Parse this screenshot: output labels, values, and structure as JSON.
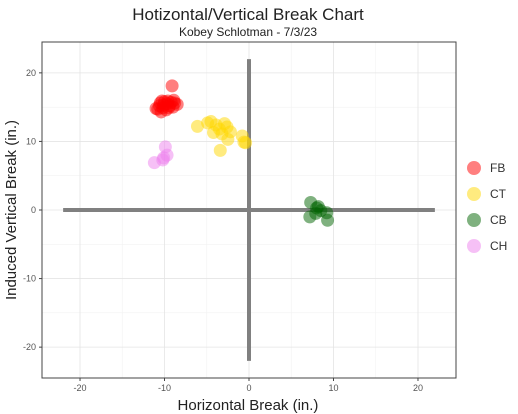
{
  "chart_data": {
    "type": "scatter",
    "title": "Hotizontal/Vertical Break Chart",
    "subtitle": "Kobey Schlotman - 7/3/23",
    "xlabel": "Horizontal Break (in.)",
    "ylabel": "Induced Vertical Break (in.)",
    "xlim": [
      -24.5,
      24.5
    ],
    "ylim": [
      -24.5,
      24.5
    ],
    "x_ticks": [
      -20,
      -10,
      0,
      10,
      20
    ],
    "y_ticks": [
      -20,
      -10,
      0,
      10,
      20
    ],
    "grid": true,
    "legend_position": "right",
    "reference_lines": [
      {
        "orientation": "horizontal",
        "y": 0,
        "from": -22,
        "to": 22,
        "color": "#808080"
      },
      {
        "orientation": "vertical",
        "x": 0,
        "from": -22,
        "to": 22,
        "color": "#808080"
      }
    ],
    "series": [
      {
        "name": "FB",
        "color": "#ff0000",
        "opacity": 0.5,
        "points": [
          [
            -9.1,
            18.1
          ],
          [
            -10.8,
            14.7
          ],
          [
            -10.5,
            15.6
          ],
          [
            -10.0,
            15.8
          ],
          [
            -9.6,
            15.9
          ],
          [
            -9.2,
            15.7
          ],
          [
            -8.8,
            15.6
          ],
          [
            -8.5,
            15.4
          ],
          [
            -9.4,
            15.2
          ],
          [
            -10.2,
            14.9
          ],
          [
            -9.8,
            14.6
          ],
          [
            -10.4,
            14.3
          ],
          [
            -9.0,
            15.0
          ],
          [
            -10.6,
            15.2
          ],
          [
            -9.7,
            15.5
          ],
          [
            -10.3,
            15.9
          ],
          [
            -8.9,
            16.0
          ],
          [
            -11.0,
            14.8
          ],
          [
            -9.5,
            14.9
          ],
          [
            -10.1,
            15.3
          ]
        ]
      },
      {
        "name": "CT",
        "color": "#ffd700",
        "opacity": 0.5,
        "points": [
          [
            -4.9,
            12.7
          ],
          [
            -6.1,
            12.2
          ],
          [
            -4.5,
            12.9
          ],
          [
            -3.9,
            12.4
          ],
          [
            -3.5,
            11.8
          ],
          [
            -2.6,
            12.1
          ],
          [
            -2.2,
            11.4
          ],
          [
            -4.2,
            11.3
          ],
          [
            -3.2,
            11.1
          ],
          [
            -2.5,
            10.3
          ],
          [
            -3.4,
            8.7
          ],
          [
            -0.8,
            10.8
          ],
          [
            -0.6,
            9.9
          ],
          [
            -0.4,
            9.8
          ],
          [
            -2.9,
            12.6
          ]
        ]
      },
      {
        "name": "CB",
        "color": "#006400",
        "opacity": 0.5,
        "points": [
          [
            7.3,
            1.1
          ],
          [
            8.0,
            0.3
          ],
          [
            8.5,
            -0.1
          ],
          [
            7.9,
            -0.5
          ],
          [
            7.2,
            -1.0
          ],
          [
            9.2,
            -0.4
          ],
          [
            9.3,
            -1.5
          ],
          [
            8.2,
            0.5
          ]
        ]
      },
      {
        "name": "CH",
        "color": "#ee82ee",
        "opacity": 0.5,
        "points": [
          [
            -11.2,
            6.9
          ],
          [
            -10.1,
            7.6
          ],
          [
            -9.7,
            8.0
          ],
          [
            -9.9,
            9.2
          ],
          [
            -10.2,
            7.3
          ]
        ]
      }
    ]
  }
}
